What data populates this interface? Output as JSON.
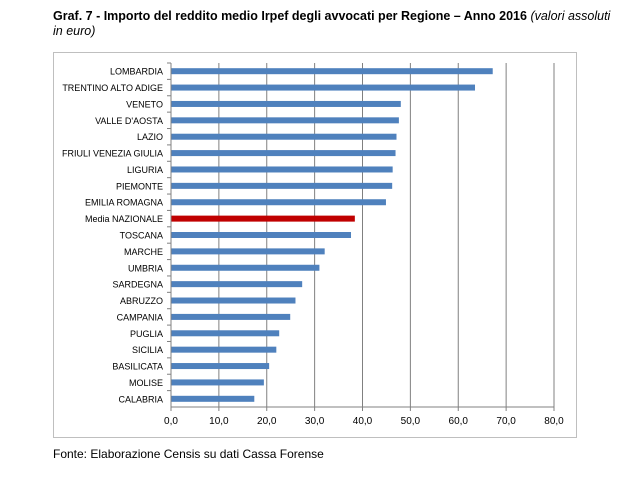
{
  "header": {
    "title_bold": "Graf. 7 - Importo del reddito medio Irpef degli avvocati per Regione – Anno 2016",
    "title_italic": "(valori assoluti in euro)"
  },
  "footer": {
    "source": "Fonte: Elaborazione Censis su dati Cassa Forense"
  },
  "chart_data": {
    "type": "bar",
    "orientation": "horizontal",
    "title": "",
    "xlabel": "",
    "ylabel": "",
    "xlim": [
      0,
      80
    ],
    "xticks": [
      "0,0",
      "10,0",
      "20,0",
      "30,0",
      "40,0",
      "50,0",
      "60,0",
      "70,0",
      "80,0"
    ],
    "grid": true,
    "legend": "none",
    "colors": {
      "bar": "#4f81bd",
      "highlight": "#c00000",
      "grid": "#808080"
    },
    "highlight_category": "Media NAZIONALE",
    "categories": [
      "LOMBARDIA",
      "TRENTINO ALTO ADIGE",
      "VENETO",
      "VALLE D'AOSTA",
      "LAZIO",
      "FRIULI VENEZIA GIULIA",
      "LIGURIA",
      "PIEMONTE",
      "EMILIA ROMAGNA",
      "Media NAZIONALE",
      "TOSCANA",
      "MARCHE",
      "UMBRIA",
      "SARDEGNA",
      "ABRUZZO",
      "CAMPANIA",
      "PUGLIA",
      "SICILIA",
      "BASILICATA",
      "MOLISE",
      "CALABRIA"
    ],
    "values": [
      67.2,
      63.5,
      48.0,
      47.6,
      47.1,
      46.9,
      46.3,
      46.2,
      44.9,
      38.4,
      37.6,
      32.1,
      31.0,
      27.4,
      26.0,
      24.9,
      22.6,
      22.0,
      20.5,
      19.4,
      17.4
    ]
  }
}
